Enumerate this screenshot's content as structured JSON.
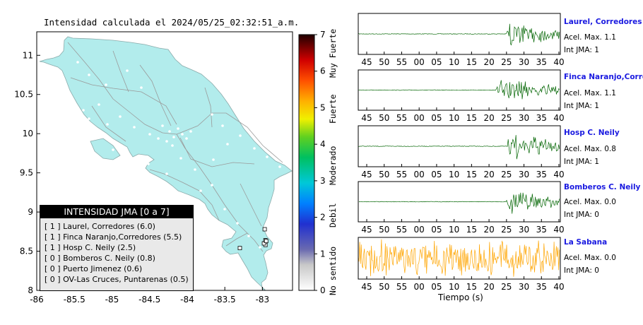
{
  "map": {
    "title": "Intensidad calculada el 2024/05/25_02:32:51_a.m.",
    "x_ticks": [
      "-86",
      "-85.5",
      "-85",
      "-84.5",
      "-84",
      "-83.5",
      "-83"
    ],
    "y_ticks": [
      "11",
      "10.5",
      "10",
      "9.5",
      "9",
      "8.5",
      "8"
    ],
    "land_color": "#b2ecec",
    "ocean_color": "#ffffff"
  },
  "colorbar": {
    "ticks": [
      "0",
      "1",
      "2",
      "3",
      "4",
      "5",
      "6",
      "7"
    ],
    "labels": [
      "No sentido",
      "Debil",
      "Moderado",
      "Fuerte",
      "Muy Fuerte"
    ]
  },
  "legend": {
    "header": "INTENSIDAD JMA [0 a 7]",
    "items": [
      "[ 1 ] Laurel, Corredores (6.0)",
      "[ 1 ] Finca Naranjo,Corredores (5.5)",
      "[ 1 ] Hosp C. Neily (2.5)",
      "[ 0 ] Bomberos C. Neily (0.8)",
      "[ 0 ] Puerto Jimenez (0.6)",
      "[ 0 ] OV-Las Cruces, Puntarenas (0.5)"
    ]
  },
  "stations": [
    {
      "name": "Laurel, Corredores",
      "accel": "Acel. Max. 1.1",
      "jma": "Int JMA: 1",
      "color": "#006400"
    },
    {
      "name": "Finca Naranjo,Corredores",
      "accel": "Acel. Max. 1.1",
      "jma": "Int JMA: 1",
      "color": "#006400"
    },
    {
      "name": "Hosp C. Neily",
      "accel": "Acel. Max. 0.8",
      "jma": "Int JMA: 1",
      "color": "#006400"
    },
    {
      "name": "Bomberos C. Neily",
      "accel": "Acel. Max. 0.0",
      "jma": "Int JMA: 0",
      "color": "#006400"
    },
    {
      "name": "La Sabana",
      "accel": "Acel. Max. 0.0",
      "jma": "Int JMA: 0",
      "color": "#ffa500"
    }
  ],
  "seismograms": {
    "x_ticks": [
      "45",
      "50",
      "55",
      "00",
      "05",
      "10",
      "15",
      "20",
      "25",
      "30",
      "35",
      "40"
    ],
    "xlabel": "Tiempo (s)"
  },
  "chart_data": [
    {
      "type": "scatter",
      "title": "Intensidad calculada el 2024/05/25_02:32:51_a.m.",
      "xlim": [
        -86,
        -82.6
      ],
      "ylim": [
        8,
        11.3
      ],
      "legend": "bottom-left",
      "series": [
        {
          "name": "Laurel, Corredores",
          "x": [
            -82.96
          ],
          "y": [
            8.58
          ],
          "intensity": 6.0
        },
        {
          "name": "Finca Naranjo,Corredores",
          "x": [
            -82.98
          ],
          "y": [
            8.6
          ],
          "intensity": 5.5
        },
        {
          "name": "Hosp C. Neily",
          "x": [
            -82.96
          ],
          "y": [
            8.64
          ],
          "intensity": 2.5
        },
        {
          "name": "Bomberos C. Neily",
          "x": [
            -82.95
          ],
          "y": [
            8.63
          ],
          "intensity": 0.8
        },
        {
          "name": "Puerto Jimenez",
          "x": [
            -83.3
          ],
          "y": [
            8.54
          ],
          "intensity": 0.6
        },
        {
          "name": "OV-Las Cruces, Puntarenas",
          "x": [
            -82.97
          ],
          "y": [
            8.78
          ],
          "intensity": 0.5
        }
      ]
    },
    {
      "type": "line",
      "xlabel": "Tiempo (s)",
      "series": [
        {
          "name": "Laurel, Corredores",
          "onset_tick": "25",
          "shape": "burst"
        },
        {
          "name": "Finca Naranjo,Corredores",
          "onset_tick": "22",
          "shape": "burst"
        },
        {
          "name": "Hosp C. Neily",
          "onset_tick": "25",
          "shape": "burst"
        },
        {
          "name": "Bomberos C. Neily",
          "onset_tick": "25",
          "shape": "burst"
        },
        {
          "name": "La Sabana",
          "onset_tick": "45",
          "shape": "noise"
        }
      ]
    }
  ]
}
